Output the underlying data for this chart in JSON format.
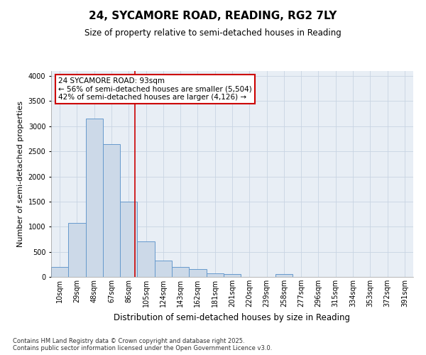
{
  "title": "24, SYCAMORE ROAD, READING, RG2 7LY",
  "subtitle": "Size of property relative to semi-detached houses in Reading",
  "xlabel": "Distribution of semi-detached houses by size in Reading",
  "ylabel": "Number of semi-detached properties",
  "footnote": "Contains HM Land Registry data © Crown copyright and database right 2025.\nContains public sector information licensed under the Open Government Licence v3.0.",
  "categories": [
    "10sqm",
    "29sqm",
    "48sqm",
    "67sqm",
    "86sqm",
    "105sqm",
    "124sqm",
    "143sqm",
    "162sqm",
    "181sqm",
    "201sqm",
    "220sqm",
    "239sqm",
    "258sqm",
    "277sqm",
    "296sqm",
    "315sqm",
    "334sqm",
    "353sqm",
    "372sqm",
    "391sqm"
  ],
  "values": [
    200,
    1075,
    3150,
    2650,
    1500,
    700,
    325,
    200,
    150,
    75,
    50,
    0,
    0,
    50,
    0,
    0,
    0,
    0,
    0,
    0,
    0
  ],
  "bar_color": "#ccd9e8",
  "bar_edge_color": "#6699cc",
  "grid_color": "#c8d4e3",
  "background_color": "#e8eef5",
  "annotation_box_color": "#ffffff",
  "annotation_border_color": "#cc0000",
  "annotation_text_line1": "24 SYCAMORE ROAD: 93sqm",
  "annotation_text_line2": "← 56% of semi-detached houses are smaller (5,504)",
  "annotation_text_line3": "42% of semi-detached houses are larger (4,126) →",
  "vline_x": 4.37,
  "ylim": [
    0,
    4100
  ],
  "yticks": [
    0,
    500,
    1000,
    1500,
    2000,
    2500,
    3000,
    3500,
    4000
  ],
  "title_fontsize": 11,
  "subtitle_fontsize": 8.5,
  "axis_label_fontsize": 8,
  "tick_fontsize": 7,
  "footnote_fontsize": 6,
  "annotation_fontsize": 7.5
}
